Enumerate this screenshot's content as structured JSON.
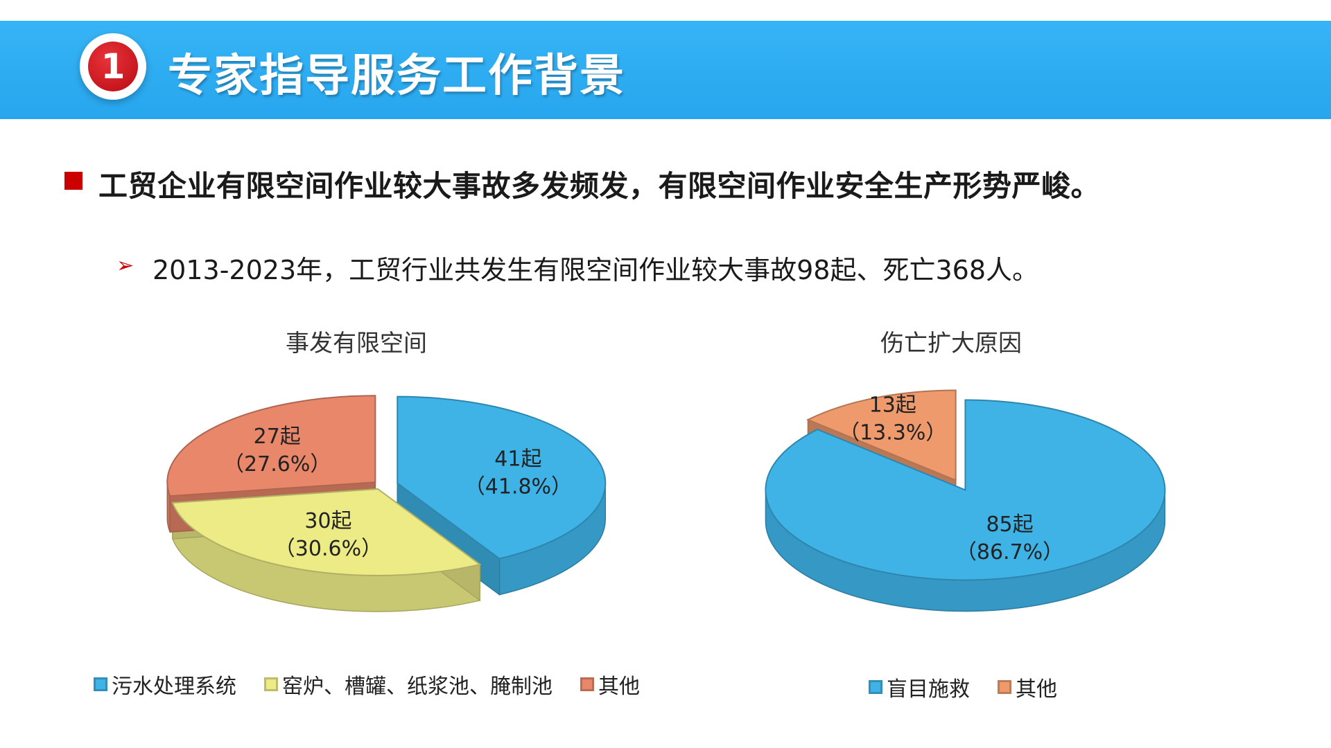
{
  "header": {
    "number": "1",
    "title": "专家指导服务工作背景"
  },
  "headline": "工贸企业有限空间作业较大事故多发频发，有限空间作业安全生产形势严峻。",
  "subline": "2013-2023年，工贸行业共发生有限空间作业较大事故98起、死亡368人。",
  "chart_data": [
    {
      "type": "pie",
      "title": "事发有限空间",
      "categories": [
        "污水处理系统",
        "窑炉、槽罐、纸浆池、腌制池",
        "其他"
      ],
      "values": [
        41,
        30,
        27
      ],
      "percent": [
        41.8,
        30.6,
        27.6
      ],
      "labels": [
        {
          "count": "41起",
          "pct": "（41.8%）"
        },
        {
          "count": "30起",
          "pct": "（30.6%）"
        },
        {
          "count": "27起",
          "pct": "（27.6%）"
        }
      ],
      "colors": [
        "#3fb3e6",
        "#eceb86",
        "#e9876a"
      ],
      "legend_position": "bottom"
    },
    {
      "type": "pie",
      "title": "伤亡扩大原因",
      "categories": [
        "盲目施救",
        "其他"
      ],
      "values": [
        85,
        13
      ],
      "percent": [
        86.7,
        13.3
      ],
      "labels": [
        {
          "count": "85起",
          "pct": "（86.7%）"
        },
        {
          "count": "13起",
          "pct": "（13.3%）"
        }
      ],
      "colors": [
        "#3fb3e6",
        "#ee9a6d"
      ],
      "legend_position": "bottom"
    }
  ]
}
